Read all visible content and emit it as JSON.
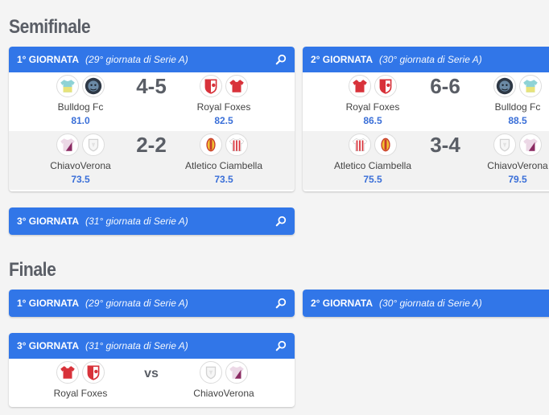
{
  "semifinale": {
    "title": "Semifinale",
    "rounds": [
      {
        "round_label": "1° GIORNATA",
        "serie_a_label": "(29° giornata di Serie A)",
        "matches": [
          {
            "home": "Bulldog Fc",
            "home_pts": "81.0",
            "score": "4-5",
            "away": "Royal Foxes",
            "away_pts": "82.5"
          },
          {
            "home": "ChiavoVerona",
            "home_pts": "73.5",
            "score": "2-2",
            "away": "Atletico Ciambella",
            "away_pts": "73.5"
          }
        ]
      },
      {
        "round_label": "2° GIORNATA",
        "serie_a_label": "(30° giornata di Serie A)",
        "matches": [
          {
            "home": "Royal Foxes",
            "home_pts": "86.5",
            "score": "6-6",
            "away": "Bulldog Fc",
            "away_pts": "88.5"
          },
          {
            "home": "Atletico Ciambella",
            "home_pts": "75.5",
            "score": "3-4",
            "away": "ChiavoVerona",
            "away_pts": "79.5"
          }
        ]
      },
      {
        "round_label": "3° GIORNATA",
        "serie_a_label": "(31° giornata di Serie A)"
      }
    ]
  },
  "finale": {
    "title": "Finale",
    "rounds": [
      {
        "round_label": "1° GIORNATA",
        "serie_a_label": "(29° giornata di Serie A)"
      },
      {
        "round_label": "2° GIORNATA",
        "serie_a_label": "(30° giornata di Serie A)"
      },
      {
        "round_label": "3° GIORNATA",
        "serie_a_label": "(31° giornata di Serie A)",
        "matches": [
          {
            "home": "Royal Foxes",
            "vs": "vs",
            "away": "ChiavoVerona"
          }
        ]
      }
    ]
  },
  "colors": {
    "header_blue": "#3176e8",
    "points_blue": "#3a6fd8",
    "title_gray": "#5a5e66"
  },
  "icons": {
    "search": "search-icon",
    "team_logos": [
      "bulldog-logo-icon",
      "royal-foxes-logo-icon",
      "chiavoverona-logo-icon",
      "atletico-ciambella-logo-icon"
    ]
  }
}
